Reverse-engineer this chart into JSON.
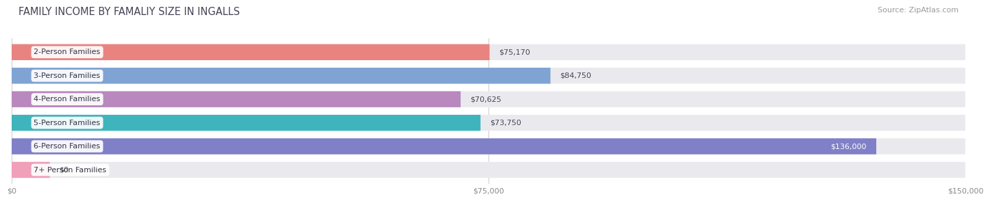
{
  "title": "FAMILY INCOME BY FAMALIY SIZE IN INGALLS",
  "source": "Source: ZipAtlas.com",
  "categories": [
    "2-Person Families",
    "3-Person Families",
    "4-Person Families",
    "5-Person Families",
    "6-Person Families",
    "7+ Person Families"
  ],
  "values": [
    75170,
    84750,
    70625,
    73750,
    136000,
    0
  ],
  "bar_colors": [
    "#E8837F",
    "#7FA4D4",
    "#B888BE",
    "#40B4BC",
    "#8080C8",
    "#F0A0B8"
  ],
  "label_texts": [
    "$75,170",
    "$84,750",
    "$70,625",
    "$73,750",
    "$136,000",
    "$0"
  ],
  "zero_bar_width": 6000,
  "xmax": 150000,
  "xtick_labels": [
    "$0",
    "$75,000",
    "$150,000"
  ],
  "background_color": "#ffffff",
  "bar_bg_color": "#eaeaee",
  "title_color": "#444455",
  "title_fontsize": 10.5,
  "label_fontsize": 8,
  "category_fontsize": 8,
  "source_fontsize": 8
}
